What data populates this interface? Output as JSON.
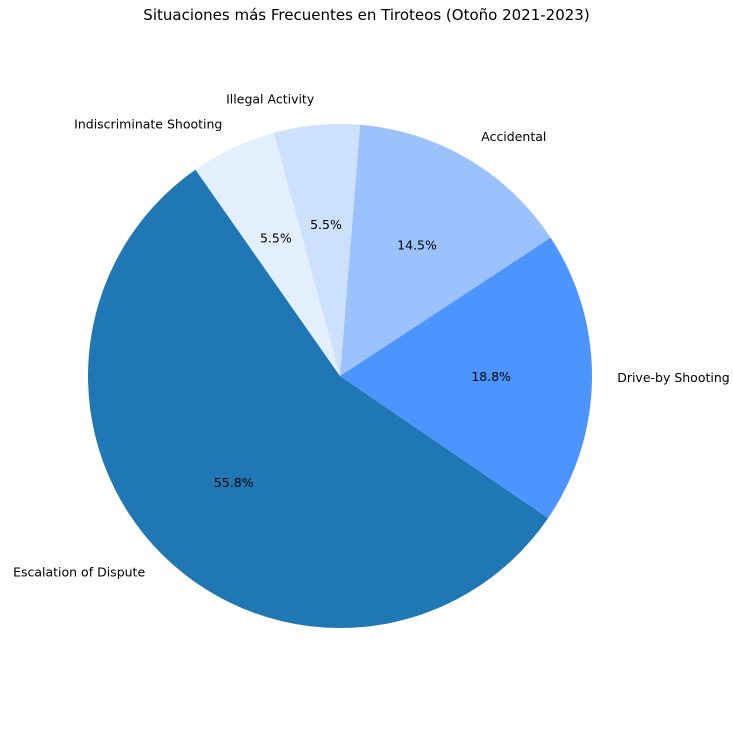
{
  "chart_data": {
    "type": "pie",
    "title": "Situaciones más Frecuentes en Tiroteos (Otoño 2021-2023)",
    "start_angle_deg": 125,
    "direction": "counterclockwise",
    "slices": [
      {
        "label": "Escalation of Dispute",
        "value": 55.8,
        "pct_label": "55.8%",
        "color": "#1f77b4"
      },
      {
        "label": "Drive-by Shooting",
        "value": 18.8,
        "pct_label": "18.8%",
        "color": "#4c94fe"
      },
      {
        "label": "Accidental",
        "value": 14.5,
        "pct_label": "14.5%",
        "color": "#9cc2fe"
      },
      {
        "label": "Illegal Activity",
        "value": 5.5,
        "pct_label": "5.5%",
        "color": "#cde0fe"
      },
      {
        "label": "Indiscriminate Shooting",
        "value": 5.5,
        "pct_label": "5.5%",
        "color": "#e4effe"
      }
    ]
  }
}
